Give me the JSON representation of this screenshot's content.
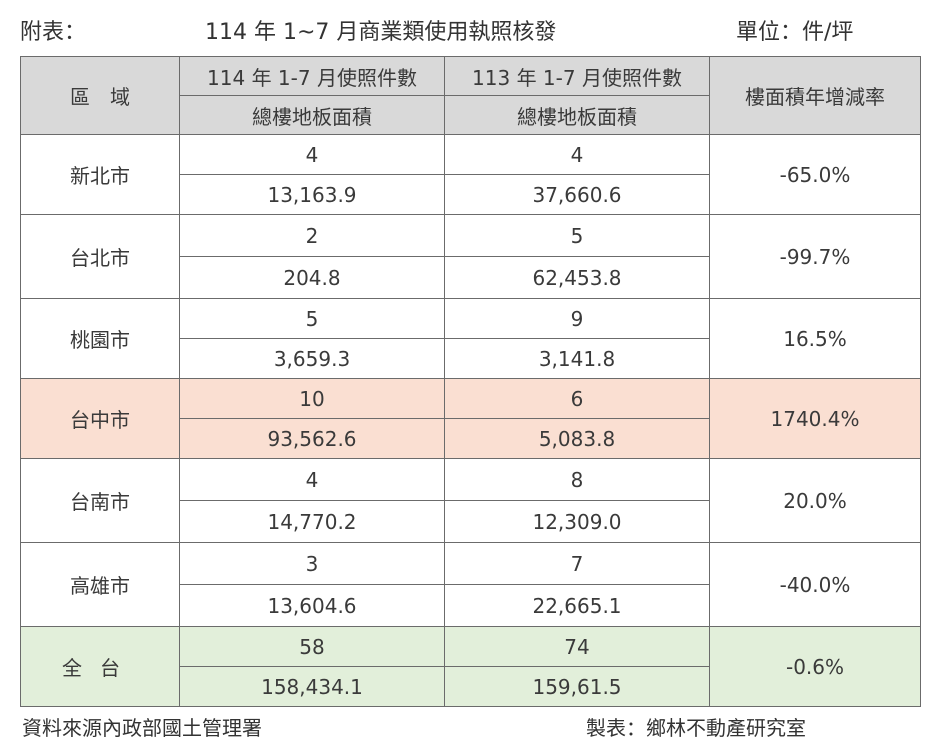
{
  "header": {
    "label": "附表：",
    "title": "114 年 1~7 月商業類使用執照核發",
    "unit": "單位：件/坪"
  },
  "columns": {
    "region": "區　域",
    "col1_top": "114 年 1-7 月使照件數",
    "col1_bottom": "總樓地板面積",
    "col2_top": "113 年 1-7 月使照件數",
    "col2_bottom": "總樓地板面積",
    "rate": "樓面積年增減率"
  },
  "rows": [
    {
      "region": "新北市",
      "count_114": "4",
      "area_114": "13,163.9",
      "count_113": "4",
      "area_113": "37,660.6",
      "rate": "-65.0%"
    },
    {
      "region": "台北市",
      "count_114": "2",
      "area_114": "204.8",
      "count_113": "5",
      "area_113": "62,453.8",
      "rate": "-99.7%"
    },
    {
      "region": "桃園市",
      "count_114": "5",
      "area_114": "3,659.3",
      "count_113": "9",
      "area_113": "3,141.8",
      "rate": "16.5%"
    },
    {
      "region": "台中市",
      "count_114": "10",
      "area_114": "93,562.6",
      "count_113": "6",
      "area_113": "5,083.8",
      "rate": "1740.4%"
    },
    {
      "region": "台南市",
      "count_114": "4",
      "area_114": "14,770.2",
      "count_113": "8",
      "area_113": "12,309.0",
      "rate": "20.0%"
    },
    {
      "region": "高雄市",
      "count_114": "3",
      "area_114": "13,604.6",
      "count_113": "7",
      "area_113": "22,665.1",
      "rate": "-40.0%"
    },
    {
      "region": "全台",
      "count_114": "58",
      "area_114": "158,434.1",
      "count_113": "74",
      "area_113": "159,61.5",
      "rate": "-0.6%"
    }
  ],
  "colors": {
    "header_bg": "#d9d9d9",
    "highlight_bg": "#fadfd2",
    "total_bg": "#e2efda"
  },
  "footer": {
    "source": "資料來源內政部國土管理署",
    "maker": "製表：鄉林不動產研究室"
  }
}
